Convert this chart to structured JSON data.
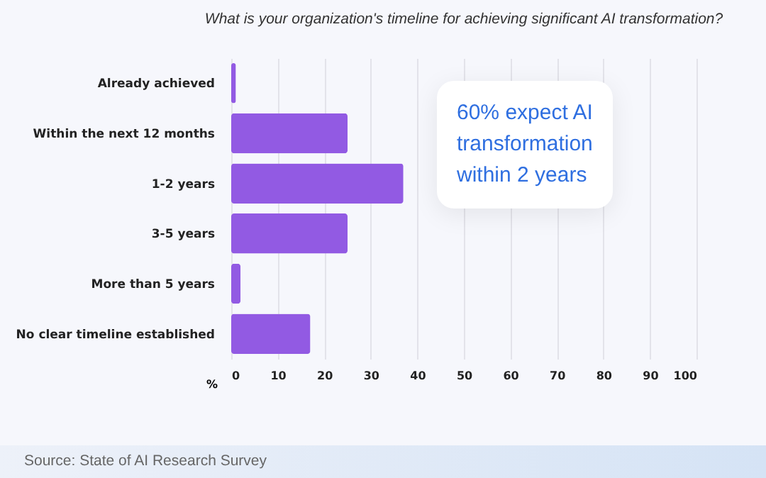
{
  "chart_data": {
    "type": "bar",
    "orientation": "horizontal",
    "title": "What is your organization's timeline for achieving significant AI transformation?",
    "xlabel": "%",
    "categories": [
      "Already achieved",
      "Within the next 12 months",
      "1-2 years",
      "3-5 years",
      "More than 5 years",
      "No clear timeline established"
    ],
    "values": [
      1,
      25,
      37,
      25,
      2,
      17
    ],
    "color": "#925ae3",
    "xlim": [
      0,
      100
    ],
    "xticks": [
      0,
      10,
      20,
      30,
      40,
      50,
      60,
      70,
      80,
      90,
      100
    ],
    "grid": "x",
    "annotations": [
      "60% expect AI transformation within 2 years",
      "Source: State of AI Research Survey"
    ]
  }
}
